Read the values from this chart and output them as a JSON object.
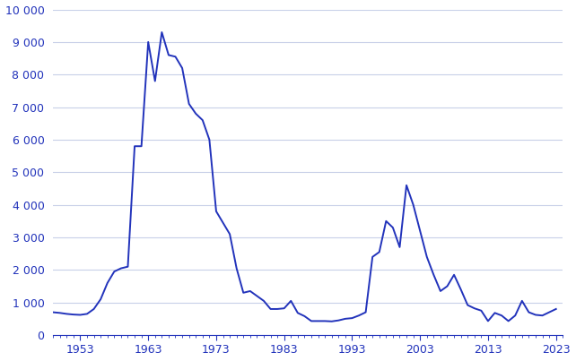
{
  "years": [
    1949,
    1950,
    1951,
    1952,
    1953,
    1954,
    1955,
    1956,
    1957,
    1958,
    1959,
    1960,
    1961,
    1962,
    1963,
    1964,
    1965,
    1966,
    1967,
    1968,
    1969,
    1970,
    1971,
    1972,
    1973,
    1974,
    1975,
    1976,
    1977,
    1978,
    1979,
    1980,
    1981,
    1982,
    1983,
    1984,
    1985,
    1986,
    1987,
    1988,
    1989,
    1990,
    1991,
    1992,
    1993,
    1994,
    1995,
    1996,
    1997,
    1998,
    1999,
    2000,
    2001,
    2002,
    2003,
    2004,
    2005,
    2006,
    2007,
    2008,
    2009,
    2010,
    2011,
    2012,
    2013,
    2014,
    2015,
    2016,
    2017,
    2018,
    2019,
    2020,
    2021,
    2022,
    2023
  ],
  "values": [
    700,
    680,
    650,
    630,
    620,
    650,
    800,
    1100,
    1600,
    1950,
    2050,
    2100,
    5800,
    5800,
    9000,
    7800,
    9300,
    8600,
    8550,
    8200,
    7100,
    6800,
    6600,
    6000,
    3800,
    3450,
    3100,
    2050,
    1300,
    1350,
    1200,
    1050,
    800,
    800,
    820,
    1050,
    680,
    580,
    430,
    430,
    430,
    420,
    450,
    500,
    520,
    600,
    700,
    2400,
    2550,
    3500,
    3300,
    2700,
    4600,
    4000,
    3200,
    2400,
    1850,
    1350,
    1500,
    1850,
    1400,
    920,
    820,
    750,
    430,
    680,
    600,
    430,
    600,
    1050,
    700,
    620,
    600,
    700,
    800
  ],
  "line_color": "#2233bb",
  "background_color": "#ffffff",
  "grid_color": "#c8d0e8",
  "tick_color": "#2233bb",
  "text_color": "#2233bb",
  "ylim": [
    0,
    10000
  ],
  "yticks": [
    0,
    1000,
    2000,
    3000,
    4000,
    5000,
    6000,
    7000,
    8000,
    9000,
    10000
  ],
  "ytick_labels": [
    "0",
    "1 000",
    "2 000",
    "3 000",
    "4 000",
    "5 000",
    "6 000",
    "7 000",
    "8 000",
    "9 000",
    "10 000"
  ],
  "xticks": [
    1953,
    1963,
    1973,
    1983,
    1993,
    2003,
    2013,
    2023
  ],
  "xlim": [
    1949,
    2024
  ]
}
